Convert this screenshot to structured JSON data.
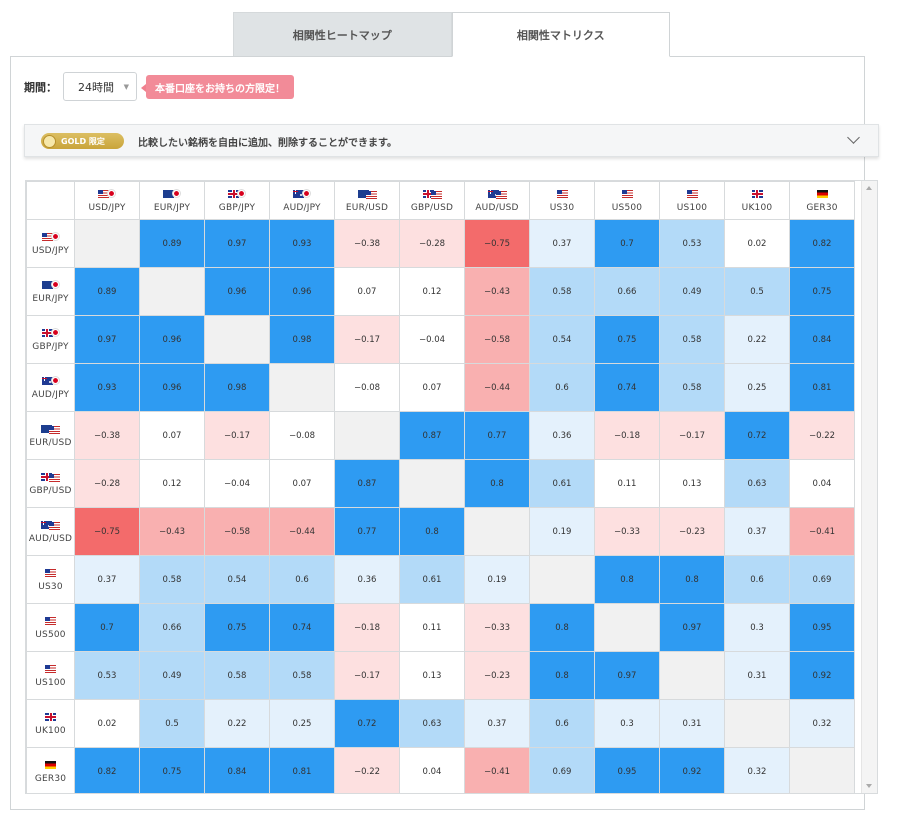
{
  "tabs": [
    {
      "label": "相関性ヒートマップ",
      "active": false
    },
    {
      "label": "相関性マトリクス",
      "active": true
    }
  ],
  "controls": {
    "period_label": "期間：",
    "period_value": "24時間",
    "notice": "本番口座をお持ちの方限定！"
  },
  "gold_bar": {
    "badge": "GOLD 限定",
    "text": "比較したい銘柄を自由に追加、削除することができます。"
  },
  "symbols": [
    {
      "label": "USD/JPY",
      "flags": [
        "us",
        "jp"
      ]
    },
    {
      "label": "EUR/JPY",
      "flags": [
        "eu",
        "jp"
      ]
    },
    {
      "label": "GBP/JPY",
      "flags": [
        "gb",
        "jp"
      ]
    },
    {
      "label": "AUD/JPY",
      "flags": [
        "au",
        "jp"
      ]
    },
    {
      "label": "EUR/USD",
      "flags": [
        "eu",
        "us"
      ]
    },
    {
      "label": "GBP/USD",
      "flags": [
        "gb",
        "us"
      ]
    },
    {
      "label": "AUD/USD",
      "flags": [
        "au",
        "us"
      ]
    },
    {
      "label": "US30",
      "flags": [
        "us"
      ]
    },
    {
      "label": "US500",
      "flags": [
        "us"
      ]
    },
    {
      "label": "US100",
      "flags": [
        "us"
      ]
    },
    {
      "label": "UK100",
      "flags": [
        "gb"
      ]
    },
    {
      "label": "GER30",
      "flags": [
        "de"
      ]
    }
  ],
  "matrix": [
    [
      null,
      "0.89",
      "0.97",
      "0.93",
      "−0.38",
      "−0.28",
      "−0.75",
      "0.37",
      "0.7",
      "0.53",
      "0.02",
      "0.82"
    ],
    [
      "0.89",
      null,
      "0.96",
      "0.96",
      "0.07",
      "0.12",
      "−0.43",
      "0.58",
      "0.66",
      "0.49",
      "0.5",
      "0.75"
    ],
    [
      "0.97",
      "0.96",
      null,
      "0.98",
      "−0.17",
      "−0.04",
      "−0.58",
      "0.54",
      "0.75",
      "0.58",
      "0.22",
      "0.84"
    ],
    [
      "0.93",
      "0.96",
      "0.98",
      null,
      "−0.08",
      "0.07",
      "−0.44",
      "0.6",
      "0.74",
      "0.58",
      "0.25",
      "0.81"
    ],
    [
      "−0.38",
      "0.07",
      "−0.17",
      "−0.08",
      null,
      "0.87",
      "0.77",
      "0.36",
      "−0.18",
      "−0.17",
      "0.72",
      "−0.22"
    ],
    [
      "−0.28",
      "0.12",
      "−0.04",
      "0.07",
      "0.87",
      null,
      "0.8",
      "0.61",
      "0.11",
      "0.13",
      "0.63",
      "0.04"
    ],
    [
      "−0.75",
      "−0.43",
      "−0.58",
      "−0.44",
      "0.77",
      "0.8",
      null,
      "0.19",
      "−0.33",
      "−0.23",
      "0.37",
      "−0.41"
    ],
    [
      "0.37",
      "0.58",
      "0.54",
      "0.6",
      "0.36",
      "0.61",
      "0.19",
      null,
      "0.8",
      "0.8",
      "0.6",
      "0.69"
    ],
    [
      "0.7",
      "0.66",
      "0.75",
      "0.74",
      "−0.18",
      "0.11",
      "−0.33",
      "0.8",
      null,
      "0.97",
      "0.3",
      "0.95"
    ],
    [
      "0.53",
      "0.49",
      "0.58",
      "0.58",
      "−0.17",
      "0.13",
      "−0.23",
      "0.8",
      "0.97",
      null,
      "0.31",
      "0.92"
    ],
    [
      "0.02",
      "0.5",
      "0.22",
      "0.25",
      "0.72",
      "0.63",
      "0.37",
      "0.6",
      "0.3",
      "0.31",
      null,
      "0.32"
    ],
    [
      "0.82",
      "0.75",
      "0.84",
      "0.81",
      "−0.22",
      "0.04",
      "−0.41",
      "0.69",
      "0.95",
      "0.92",
      "0.32",
      null
    ]
  ],
  "colors": {
    "strong_pos": "#2e9bf2",
    "mid_pos": "#b3daf8",
    "weak_pos": "#e4f1fc",
    "neutral": "#ffffff",
    "weak_neg": "#fde0e0",
    "mid_neg": "#f9b0b0",
    "strong_neg": "#f36b6b",
    "diagonal": "#f1f1f1"
  }
}
